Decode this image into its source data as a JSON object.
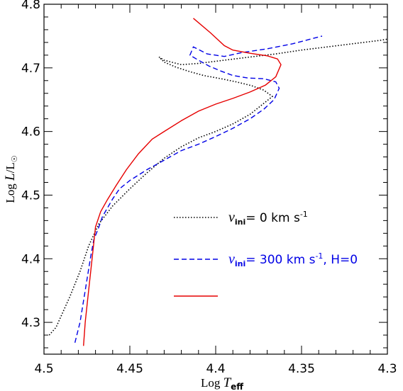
{
  "chart_data": {
    "type": "line",
    "xlabel": "Log T_eff",
    "ylabel": "Log L/L_sun",
    "xlim": [
      4.5,
      4.3
    ],
    "ylim": [
      4.25,
      4.8
    ],
    "x_ticks": [
      "4.5",
      "4.45",
      "4.4",
      "4.35",
      "4.3"
    ],
    "y_ticks": [
      "4.3",
      "4.4",
      "4.5",
      "4.6",
      "4.7",
      "4.8"
    ],
    "legend_placement": "lower-right",
    "series": [
      {
        "name": "v_ini = 0 km s^-1",
        "color": "#000000",
        "style": "dotted",
        "x": [
          4.497,
          4.493,
          4.49,
          4.485,
          4.479,
          4.474,
          4.468,
          4.46,
          4.45,
          4.44,
          4.43,
          4.42,
          4.41,
          4.4,
          4.39,
          4.38,
          4.373,
          4.367,
          4.372,
          4.379,
          4.388,
          4.397,
          4.407,
          4.415,
          4.423,
          4.43,
          4.433,
          4.43,
          4.42,
          4.41,
          4.395,
          4.38,
          4.365,
          4.35,
          4.335,
          4.32,
          4.305,
          4.298
        ],
        "y": [
          4.28,
          4.292,
          4.31,
          4.34,
          4.38,
          4.42,
          4.455,
          4.483,
          4.51,
          4.535,
          4.558,
          4.576,
          4.59,
          4.6,
          4.612,
          4.627,
          4.642,
          4.655,
          4.665,
          4.672,
          4.678,
          4.683,
          4.688,
          4.694,
          4.701,
          4.709,
          4.717,
          4.712,
          4.705,
          4.707,
          4.712,
          4.717,
          4.722,
          4.728,
          4.733,
          4.738,
          4.743,
          4.746
        ]
      },
      {
        "name": "v_ini = 300 km s^-1, H=0",
        "color": "#0000e6",
        "style": "dashed",
        "x": [
          4.482,
          4.479,
          4.476,
          4.473,
          4.471,
          4.468,
          4.466,
          4.463,
          4.46,
          4.456,
          4.45,
          4.44,
          4.43,
          4.42,
          4.41,
          4.4,
          4.39,
          4.38,
          4.372,
          4.366,
          4.363,
          4.365,
          4.372,
          4.381,
          4.39,
          4.397,
          4.404,
          4.41,
          4.415,
          4.413,
          4.405,
          4.395,
          4.385,
          4.37,
          4.355,
          4.338
        ],
        "y": [
          4.268,
          4.3,
          4.35,
          4.4,
          4.43,
          4.45,
          4.466,
          4.48,
          4.494,
          4.51,
          4.523,
          4.54,
          4.555,
          4.57,
          4.58,
          4.592,
          4.605,
          4.62,
          4.635,
          4.65,
          4.668,
          4.678,
          4.683,
          4.684,
          4.688,
          4.695,
          4.703,
          4.712,
          4.72,
          4.733,
          4.722,
          4.718,
          4.724,
          4.73,
          4.738,
          4.75
        ]
      },
      {
        "name": "",
        "color": "#e60000",
        "style": "solid",
        "x": [
          4.477,
          4.476,
          4.474,
          4.472,
          4.47,
          4.467,
          4.463,
          4.458,
          4.452,
          4.445,
          4.437,
          4.43,
          4.42,
          4.41,
          4.4,
          4.39,
          4.38,
          4.371,
          4.365,
          4.362,
          4.364,
          4.37,
          4.38,
          4.39,
          4.395,
          4.403,
          4.413
        ],
        "y": [
          4.263,
          4.3,
          4.35,
          4.4,
          4.45,
          4.474,
          4.493,
          4.515,
          4.54,
          4.565,
          4.588,
          4.6,
          4.617,
          4.632,
          4.643,
          4.652,
          4.662,
          4.673,
          4.686,
          4.705,
          4.714,
          4.719,
          4.723,
          4.728,
          4.735,
          4.755,
          4.778
        ]
      }
    ],
    "legend": [
      {
        "label_main": "v",
        "label_sub": "ini",
        "label_rest": "= 0 km s",
        "label_exp": "-1",
        "label_tail": ""
      },
      {
        "label_main": "v",
        "label_sub": "ini",
        "label_rest": "= 300 km s",
        "label_exp": "-1",
        "label_tail": ", H=0"
      },
      {
        "label_main": "",
        "label_sub": "",
        "label_rest": "",
        "label_exp": "",
        "label_tail": ""
      }
    ]
  }
}
